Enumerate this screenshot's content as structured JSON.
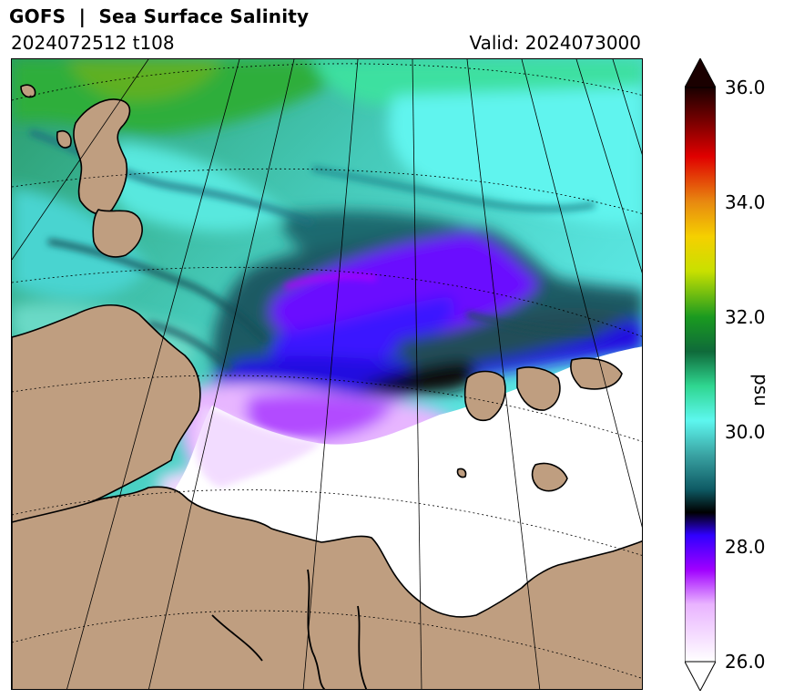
{
  "header": {
    "title": "GOFS  |  Sea Surface Salinity",
    "run_label": "2024072512 t108",
    "valid_label": "Valid: 2024073000"
  },
  "map": {
    "colors": {
      "land": "#bf9e80",
      "ice_white": "#ffffff",
      "coastline": "#000000"
    }
  },
  "colorbar": {
    "unit": "psu",
    "range": [
      26.0,
      36.0
    ],
    "ticks": [
      "36.0",
      "34.0",
      "32.0",
      "30.0",
      "28.0",
      "26.0"
    ],
    "extend": "both",
    "color_stops": [
      {
        "value": 26.0,
        "color": "#ffffff"
      },
      {
        "value": 27.0,
        "color": "#e9b3ff"
      },
      {
        "value": 27.6,
        "color": "#a000ff"
      },
      {
        "value": 28.2,
        "color": "#3000ff"
      },
      {
        "value": 28.6,
        "color": "#000000"
      },
      {
        "value": 29.0,
        "color": "#0e5a64"
      },
      {
        "value": 29.6,
        "color": "#3aa3a3"
      },
      {
        "value": 30.2,
        "color": "#5df7ef"
      },
      {
        "value": 30.8,
        "color": "#2fd690"
      },
      {
        "value": 31.4,
        "color": "#0f6a3a"
      },
      {
        "value": 32.0,
        "color": "#1a9a20"
      },
      {
        "value": 32.8,
        "color": "#c8e000"
      },
      {
        "value": 33.4,
        "color": "#f5d000"
      },
      {
        "value": 34.0,
        "color": "#e88a10"
      },
      {
        "value": 34.8,
        "color": "#e00000"
      },
      {
        "value": 35.4,
        "color": "#7a0000"
      },
      {
        "value": 36.0,
        "color": "#1a0000"
      }
    ]
  }
}
